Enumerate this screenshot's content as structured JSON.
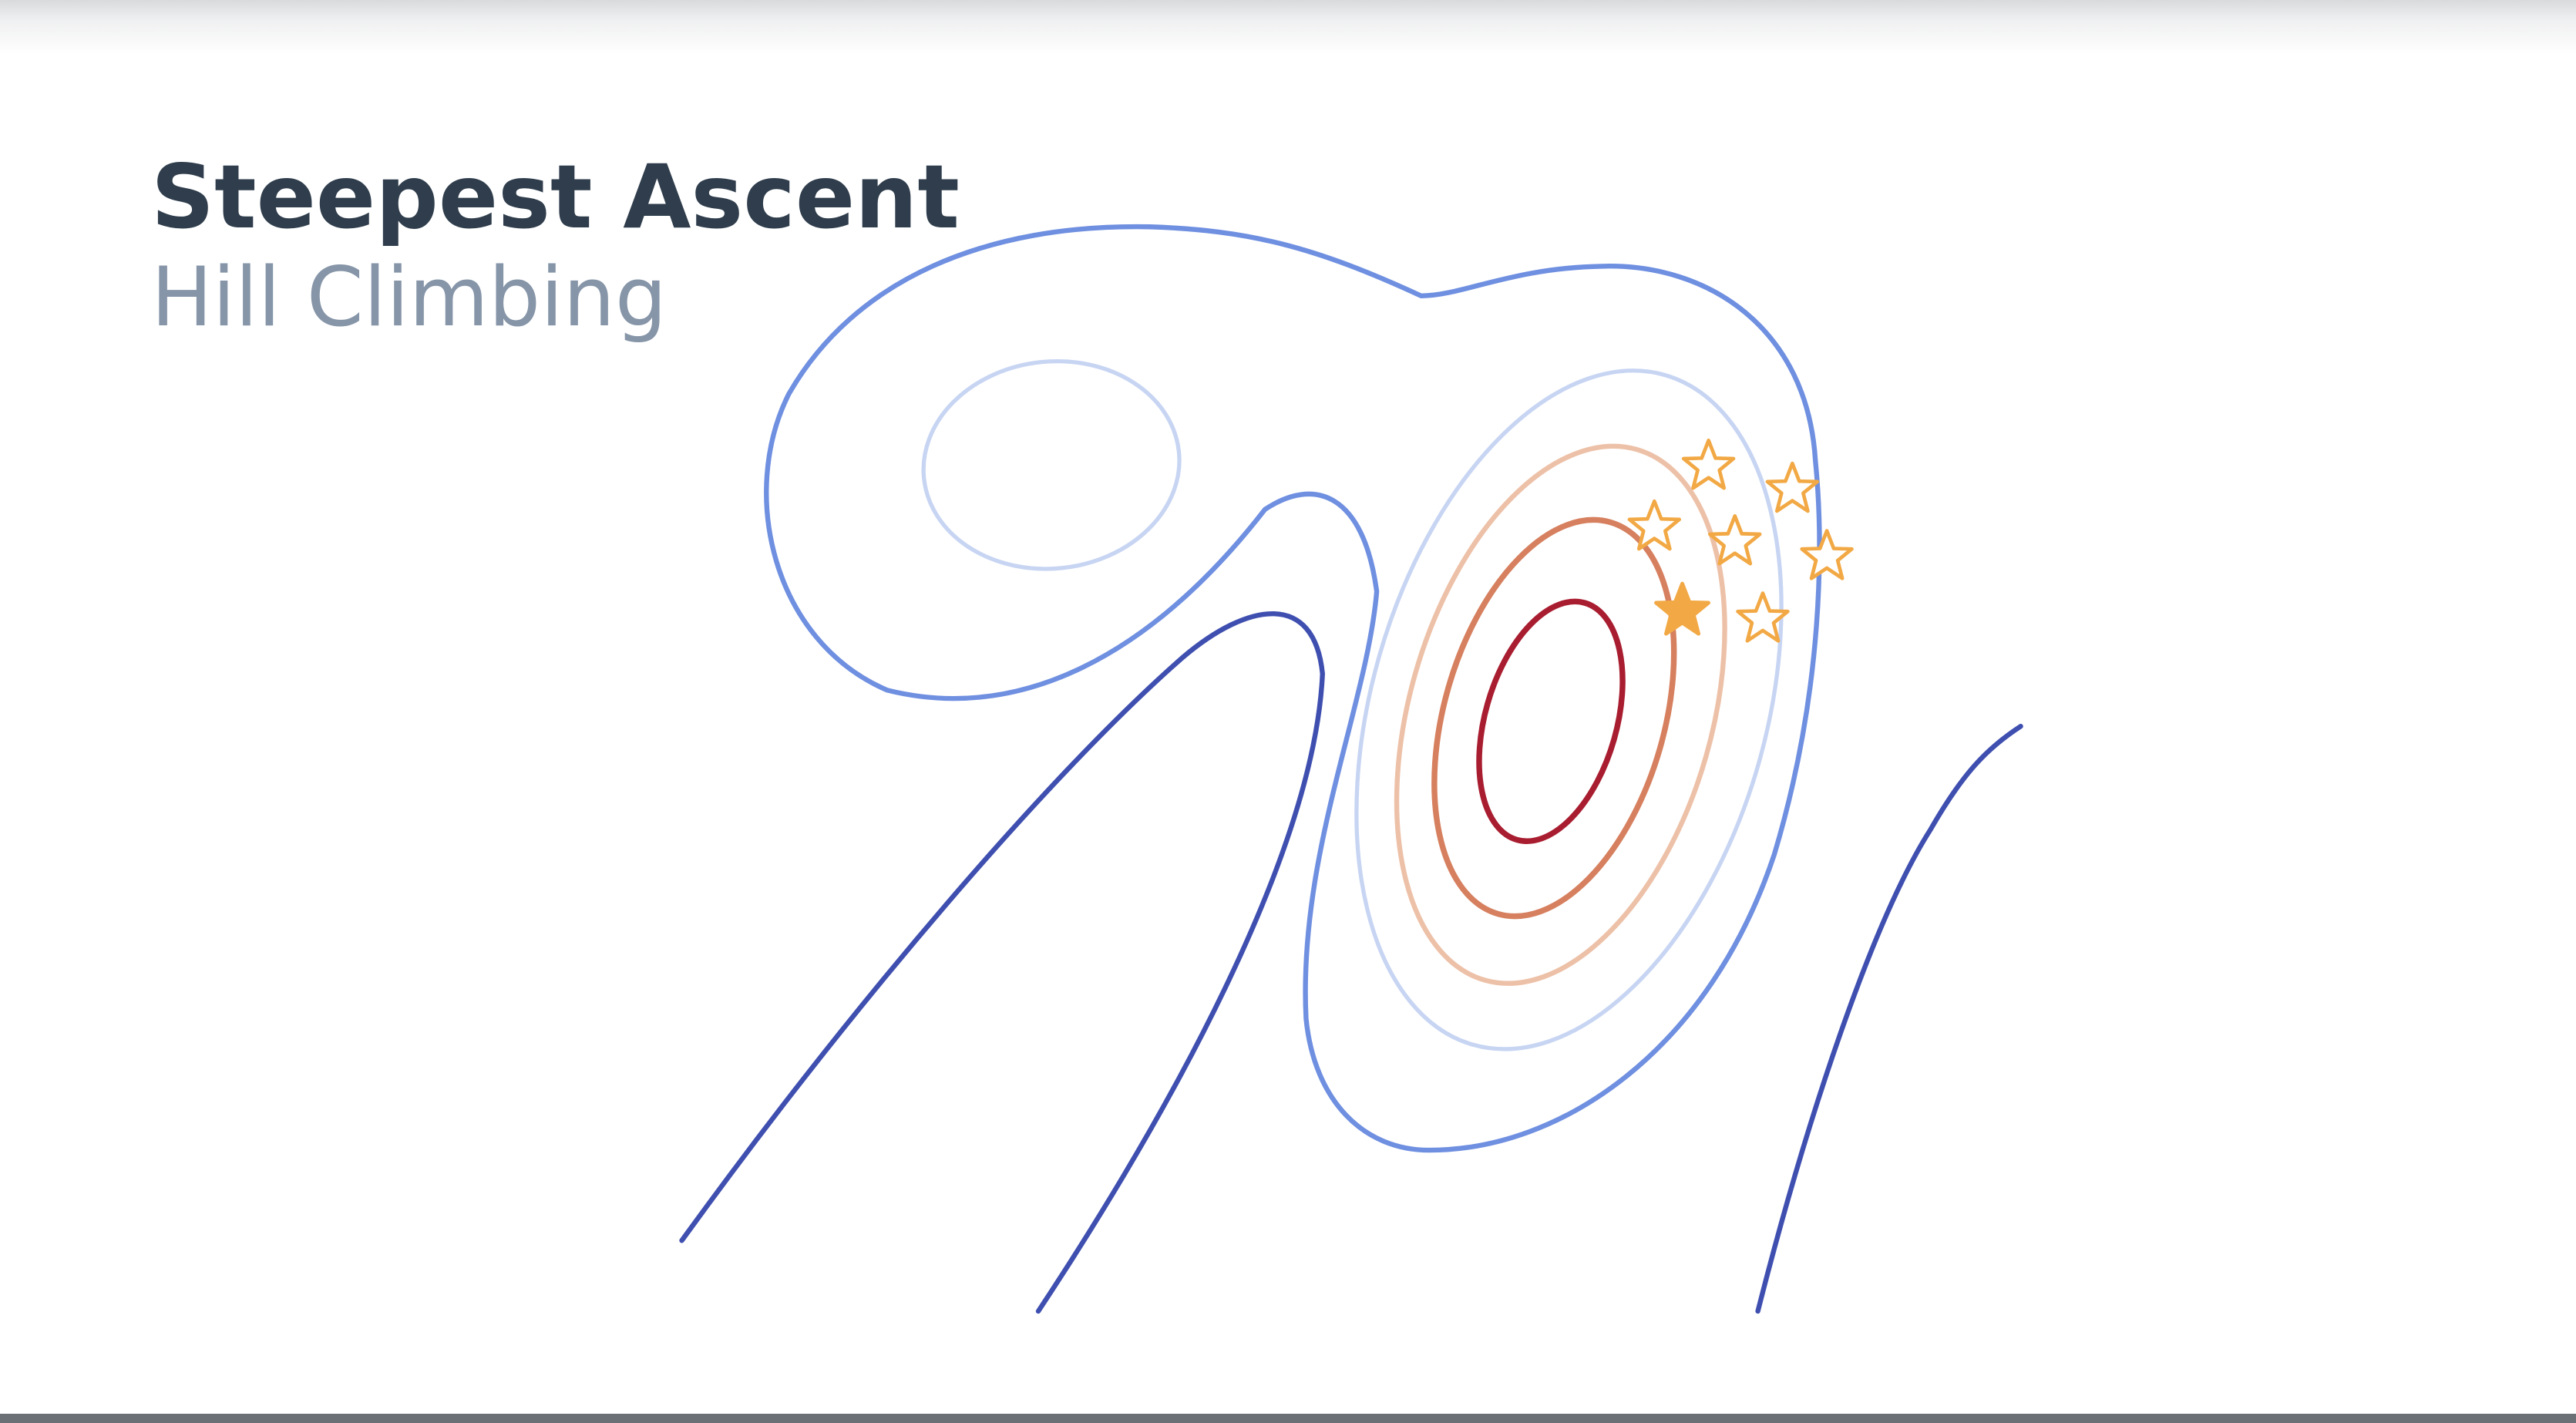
{
  "title": "Steepest Ascent",
  "subtitle": "Hill Climbing",
  "colors": {
    "title": "#2f3d4c",
    "subtitle": "#8695a8",
    "contour_dark_blue": "#3f4fb0",
    "contour_mid_blue": "#6f8fe0",
    "contour_light_blue": "#c7d5f3",
    "contour_peach": "#edc1a8",
    "contour_orange": "#d6805f",
    "contour_red": "#a91d30",
    "star": "#f2a945"
  },
  "icons": {
    "candidate": "star-outline-icon",
    "current": "star-filled-icon"
  }
}
